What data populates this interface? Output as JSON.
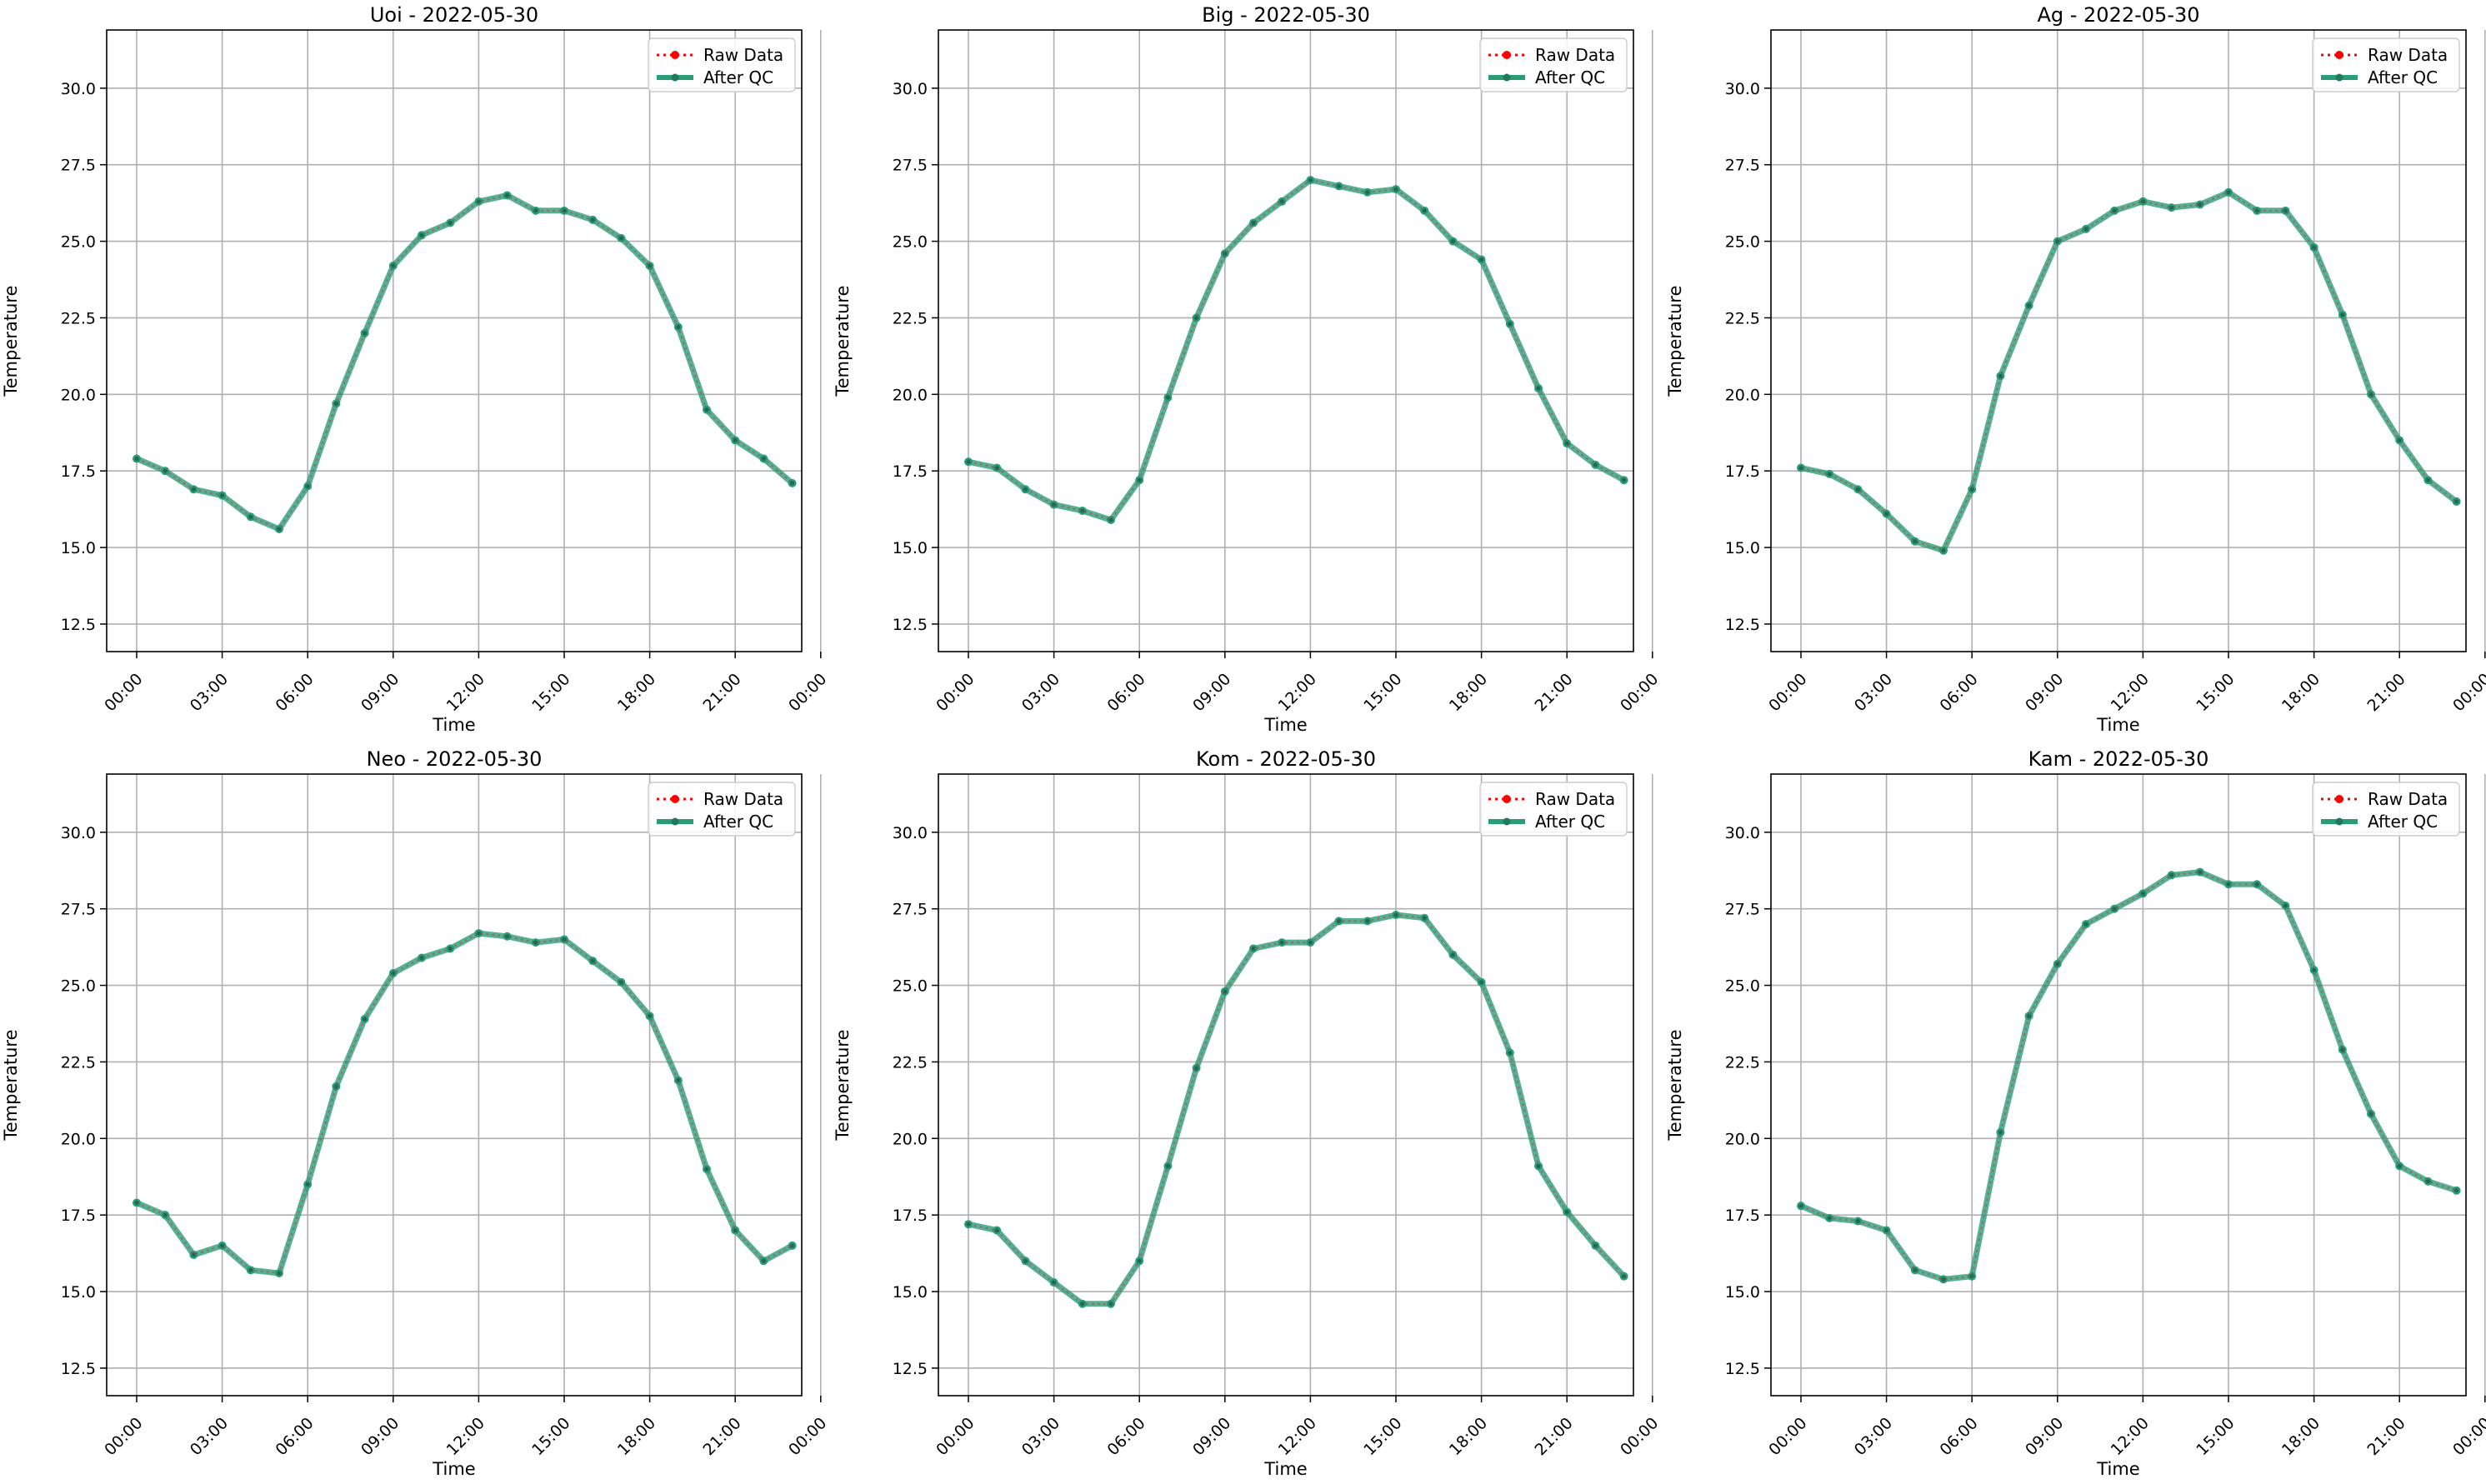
{
  "figure": {
    "xlabel": "Time",
    "ylabel": "Temperature",
    "x_tick_labels": [
      "00:00",
      "03:00",
      "06:00",
      "09:00",
      "12:00",
      "15:00",
      "18:00",
      "21:00",
      "00:00"
    ],
    "y_tick_labels": [
      "12.5",
      "15.0",
      "17.5",
      "20.0",
      "22.5",
      "25.0",
      "27.5",
      "30.0"
    ],
    "legend": {
      "raw": "Raw Data",
      "qc": "After QC"
    },
    "colors": {
      "raw": "#ff0000",
      "qc": "#2a9d78",
      "grid": "#b0b0b0",
      "axes": "#000000"
    }
  },
  "chart_data": [
    {
      "type": "line",
      "title": "Uoi - 2022-05-30",
      "xlabel": "Time",
      "ylabel": "Temperature",
      "x": [
        "00:00",
        "01:00",
        "02:00",
        "03:00",
        "04:00",
        "05:00",
        "06:00",
        "07:00",
        "08:00",
        "09:00",
        "10:00",
        "11:00",
        "12:00",
        "13:00",
        "14:00",
        "15:00",
        "16:00",
        "17:00",
        "18:00",
        "19:00",
        "20:00",
        "21:00",
        "22:00",
        "23:00"
      ],
      "ylim": [
        11.6,
        31.9
      ],
      "legend_position": "top-right",
      "grid": true,
      "series": [
        {
          "name": "Raw Data",
          "values": [
            17.9,
            17.5,
            16.9,
            16.7,
            16.0,
            15.6,
            17.0,
            19.7,
            22.0,
            24.2,
            25.2,
            25.6,
            26.3,
            26.5,
            26.0,
            26.0,
            25.7,
            25.1,
            24.2,
            22.2,
            19.5,
            18.5,
            17.9,
            17.1
          ]
        },
        {
          "name": "After QC",
          "values": [
            17.9,
            17.5,
            16.9,
            16.7,
            16.0,
            15.6,
            17.0,
            19.7,
            22.0,
            24.2,
            25.2,
            25.6,
            26.3,
            26.5,
            26.0,
            26.0,
            25.7,
            25.1,
            24.2,
            22.2,
            19.5,
            18.5,
            17.9,
            17.1
          ]
        }
      ]
    },
    {
      "type": "line",
      "title": "Big - 2022-05-30",
      "xlabel": "Time",
      "ylabel": "Temperature",
      "x": [
        "00:00",
        "01:00",
        "02:00",
        "03:00",
        "04:00",
        "05:00",
        "06:00",
        "07:00",
        "08:00",
        "09:00",
        "10:00",
        "11:00",
        "12:00",
        "13:00",
        "14:00",
        "15:00",
        "16:00",
        "17:00",
        "18:00",
        "19:00",
        "20:00",
        "21:00",
        "22:00",
        "23:00"
      ],
      "ylim": [
        11.6,
        31.9
      ],
      "legend_position": "top-right",
      "grid": true,
      "series": [
        {
          "name": "Raw Data",
          "values": [
            17.8,
            17.6,
            16.9,
            16.4,
            16.2,
            15.9,
            17.2,
            19.9,
            22.5,
            24.6,
            25.6,
            26.3,
            27.0,
            26.8,
            26.6,
            26.7,
            26.0,
            25.0,
            24.4,
            22.3,
            20.2,
            18.4,
            17.7,
            17.2
          ]
        },
        {
          "name": "After QC",
          "values": [
            17.8,
            17.6,
            16.9,
            16.4,
            16.2,
            15.9,
            17.2,
            19.9,
            22.5,
            24.6,
            25.6,
            26.3,
            27.0,
            26.8,
            26.6,
            26.7,
            26.0,
            25.0,
            24.4,
            22.3,
            20.2,
            18.4,
            17.7,
            17.2
          ]
        }
      ]
    },
    {
      "type": "line",
      "title": "Ag - 2022-05-30",
      "xlabel": "Time",
      "ylabel": "Temperature",
      "x": [
        "00:00",
        "01:00",
        "02:00",
        "03:00",
        "04:00",
        "05:00",
        "06:00",
        "07:00",
        "08:00",
        "09:00",
        "10:00",
        "11:00",
        "12:00",
        "13:00",
        "14:00",
        "15:00",
        "16:00",
        "17:00",
        "18:00",
        "19:00",
        "20:00",
        "21:00",
        "22:00",
        "23:00"
      ],
      "ylim": [
        11.6,
        31.9
      ],
      "legend_position": "top-right",
      "grid": true,
      "series": [
        {
          "name": "Raw Data",
          "values": [
            17.6,
            17.4,
            16.9,
            16.1,
            15.2,
            14.9,
            16.9,
            20.6,
            22.9,
            25.0,
            25.4,
            26.0,
            26.3,
            26.1,
            26.2,
            26.6,
            26.0,
            26.0,
            24.8,
            22.6,
            20.0,
            18.5,
            17.2,
            16.5
          ]
        },
        {
          "name": "After QC",
          "values": [
            17.6,
            17.4,
            16.9,
            16.1,
            15.2,
            14.9,
            16.9,
            20.6,
            22.9,
            25.0,
            25.4,
            26.0,
            26.3,
            26.1,
            26.2,
            26.6,
            26.0,
            26.0,
            24.8,
            22.6,
            20.0,
            18.5,
            17.2,
            16.5
          ]
        }
      ]
    },
    {
      "type": "line",
      "title": "Neo - 2022-05-30",
      "xlabel": "Time",
      "ylabel": "Temperature",
      "x": [
        "00:00",
        "01:00",
        "02:00",
        "03:00",
        "04:00",
        "05:00",
        "06:00",
        "07:00",
        "08:00",
        "09:00",
        "10:00",
        "11:00",
        "12:00",
        "13:00",
        "14:00",
        "15:00",
        "16:00",
        "17:00",
        "18:00",
        "19:00",
        "20:00",
        "21:00",
        "22:00",
        "23:00"
      ],
      "ylim": [
        11.6,
        31.9
      ],
      "legend_position": "top-right",
      "grid": true,
      "series": [
        {
          "name": "Raw Data",
          "values": [
            17.9,
            17.5,
            16.2,
            16.5,
            15.7,
            15.6,
            18.5,
            21.7,
            23.9,
            25.4,
            25.9,
            26.2,
            26.7,
            26.6,
            26.4,
            26.5,
            25.8,
            25.1,
            24.0,
            21.9,
            19.0,
            17.0,
            16.0,
            16.5
          ]
        },
        {
          "name": "After QC",
          "values": [
            17.9,
            17.5,
            16.2,
            16.5,
            15.7,
            15.6,
            18.5,
            21.7,
            23.9,
            25.4,
            25.9,
            26.2,
            26.7,
            26.6,
            26.4,
            26.5,
            25.8,
            25.1,
            24.0,
            21.9,
            19.0,
            17.0,
            16.0,
            16.5
          ]
        }
      ]
    },
    {
      "type": "line",
      "title": "Kom - 2022-05-30",
      "xlabel": "Time",
      "ylabel": "Temperature",
      "x": [
        "00:00",
        "01:00",
        "02:00",
        "03:00",
        "04:00",
        "05:00",
        "06:00",
        "07:00",
        "08:00",
        "09:00",
        "10:00",
        "11:00",
        "12:00",
        "13:00",
        "14:00",
        "15:00",
        "16:00",
        "17:00",
        "18:00",
        "19:00",
        "20:00",
        "21:00",
        "22:00",
        "23:00"
      ],
      "ylim": [
        11.6,
        31.9
      ],
      "legend_position": "top-right",
      "grid": true,
      "series": [
        {
          "name": "Raw Data",
          "values": [
            17.2,
            17.0,
            16.0,
            15.3,
            14.6,
            14.6,
            16.0,
            19.1,
            22.3,
            24.8,
            26.2,
            26.4,
            26.4,
            27.1,
            27.1,
            27.3,
            27.2,
            26.0,
            25.1,
            22.8,
            19.1,
            17.6,
            16.5,
            15.5
          ]
        },
        {
          "name": "After QC",
          "values": [
            17.2,
            17.0,
            16.0,
            15.3,
            14.6,
            14.6,
            16.0,
            19.1,
            22.3,
            24.8,
            26.2,
            26.4,
            26.4,
            27.1,
            27.1,
            27.3,
            27.2,
            26.0,
            25.1,
            22.8,
            19.1,
            17.6,
            16.5,
            15.5
          ]
        }
      ]
    },
    {
      "type": "line",
      "title": "Kam - 2022-05-30",
      "xlabel": "Time",
      "ylabel": "Temperature",
      "x": [
        "00:00",
        "01:00",
        "02:00",
        "03:00",
        "04:00",
        "05:00",
        "06:00",
        "07:00",
        "08:00",
        "09:00",
        "10:00",
        "11:00",
        "12:00",
        "13:00",
        "14:00",
        "15:00",
        "16:00",
        "17:00",
        "18:00",
        "19:00",
        "20:00",
        "21:00",
        "22:00",
        "23:00"
      ],
      "ylim": [
        11.6,
        31.9
      ],
      "legend_position": "top-right",
      "grid": true,
      "series": [
        {
          "name": "Raw Data",
          "values": [
            17.8,
            17.4,
            17.3,
            17.0,
            15.7,
            15.4,
            15.5,
            20.2,
            24.0,
            25.7,
            27.0,
            27.5,
            28.0,
            28.6,
            28.7,
            28.3,
            28.3,
            27.6,
            25.5,
            22.9,
            20.8,
            19.1,
            18.6,
            18.3
          ]
        },
        {
          "name": "After QC",
          "values": [
            17.8,
            17.4,
            17.3,
            17.0,
            15.7,
            15.4,
            15.5,
            20.2,
            24.0,
            25.7,
            27.0,
            27.5,
            28.0,
            28.6,
            28.7,
            28.3,
            28.3,
            27.6,
            25.5,
            22.9,
            20.8,
            19.1,
            18.6,
            18.3
          ]
        }
      ]
    }
  ]
}
